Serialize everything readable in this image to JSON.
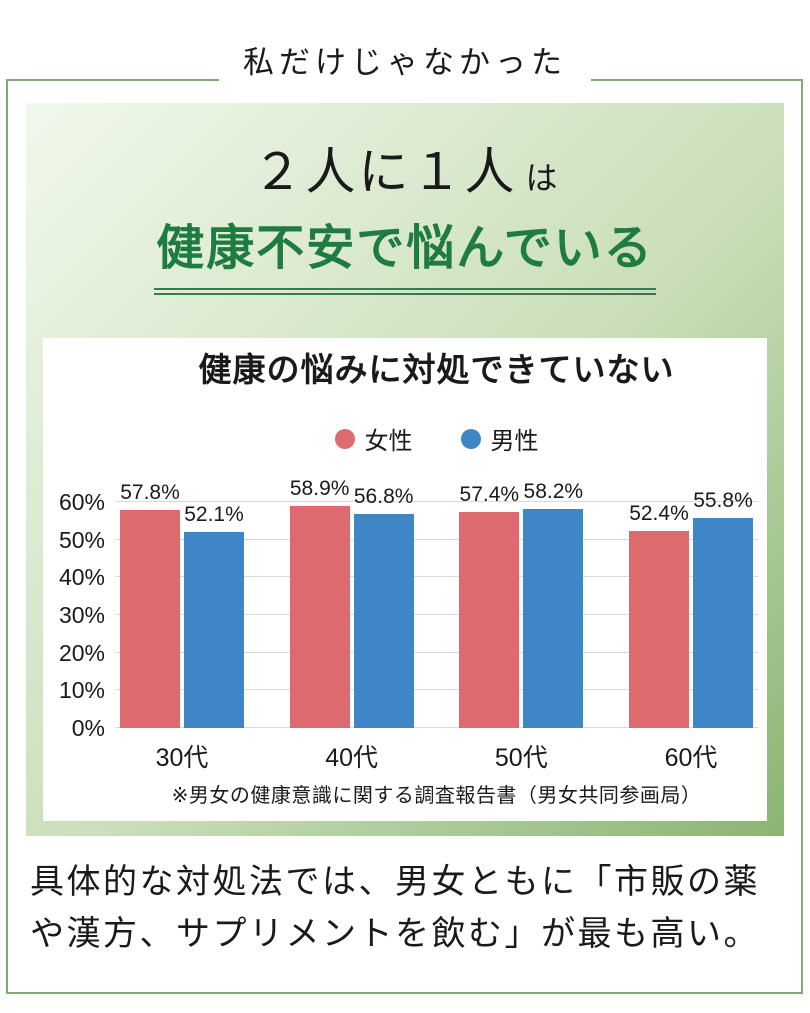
{
  "header": {
    "tagline": "私だけじゃなかった",
    "headline_main": "２人に１人",
    "headline_particle": "は",
    "headline_emphasis": "健康不安で悩んでいる"
  },
  "chart_data": {
    "type": "bar",
    "title": "健康の悩みに対処できていない",
    "categories": [
      "30代",
      "40代",
      "50代",
      "60代"
    ],
    "series": [
      {
        "name": "女性",
        "color": "#dd6a6e",
        "values": [
          57.8,
          58.9,
          57.4,
          52.4
        ],
        "labels": [
          "57.8%",
          "58.9%",
          "57.4%",
          "52.4%"
        ]
      },
      {
        "name": "男性",
        "color": "#3e86c5",
        "values": [
          52.1,
          56.8,
          58.2,
          55.8
        ],
        "labels": [
          "52.1%",
          "56.8%",
          "58.2%",
          "55.8%"
        ]
      }
    ],
    "ymax": 60,
    "yticks": [
      {
        "label": "0%",
        "value": 0
      },
      {
        "label": "10%",
        "value": 10
      },
      {
        "label": "20%",
        "value": 20
      },
      {
        "label": "30%",
        "value": 30
      },
      {
        "label": "40%",
        "value": 40
      },
      {
        "label": "50%",
        "value": 50
      },
      {
        "label": "60%",
        "value": 60
      }
    ],
    "grid": true,
    "legend_position": "top",
    "source": "※男女の健康意識に関する調査報告書（男女共同参画局）"
  },
  "footer": {
    "lines": [
      "具体的な対処法では、男女ともに「市販の薬",
      "や漢方、サプリメントを飲む」が最も高い。"
    ]
  },
  "colors": {
    "accent-green": "#1e7b41",
    "underline-green": "#2f8050",
    "frame-green": "#83a877",
    "gradient-light": "#f1f8ec",
    "gradient-dark": "#8bb473",
    "female-red": "#dd6a6e",
    "male-blue": "#3e86c5",
    "gridline": "#d9d9d9",
    "text-black": "#1a1a1a"
  }
}
